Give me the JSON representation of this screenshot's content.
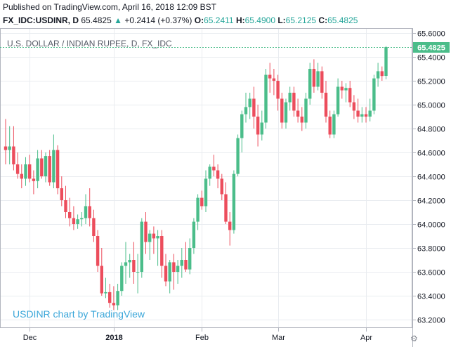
{
  "published": "Published on TradingView.com, April 16, 2018 12:09 BST",
  "header": {
    "symbol": "FX_IDC:USDINR, D",
    "last": "65.4825",
    "change_arrow": "▲",
    "change": "+0.2414 (+0.37%)",
    "open_label": "O:",
    "open": "65.2411",
    "high_label": "H:",
    "high": "65.4900",
    "low_label": "L:",
    "low": "65.2125",
    "close_label": "C:",
    "close": "65.4825"
  },
  "colors": {
    "up": "#4bbd8a",
    "down": "#ec4d5c",
    "grid": "#e9ecf0",
    "axis": "#b2b5be",
    "text": "#131722",
    "watermark": "#3aa6d9"
  },
  "chart_data": {
    "type": "candlestick",
    "title": "U.S. DOLLAR / INDIAN RUPEE, D, FX_IDC",
    "watermark": "USDINR chart by TradingView",
    "last_price_label": "65.4825",
    "last_price": 65.4825,
    "ylim": [
      63.15,
      65.65
    ],
    "yticks": [
      63.2,
      63.4,
      63.6,
      63.8,
      64.0,
      64.2,
      64.4,
      64.6,
      64.8,
      65.0,
      65.2,
      65.4,
      65.6
    ],
    "ytick_labels": [
      "63.2000",
      "63.4000",
      "63.6000",
      "63.8000",
      "64.0000",
      "64.2000",
      "64.4000",
      "64.6000",
      "64.8000",
      "65.0000",
      "65.2000",
      "65.4000",
      "65.6000"
    ],
    "xticks": [
      {
        "label": "Dec",
        "index": 6
      },
      {
        "label": "2018",
        "index": 27
      },
      {
        "label": "Feb",
        "index": 49
      },
      {
        "label": "Mar",
        "index": 68
      },
      {
        "label": "Apr",
        "index": 90
      }
    ],
    "candles": [
      {
        "o": 64.65,
        "h": 64.88,
        "l": 64.5,
        "c": 64.62
      },
      {
        "o": 64.62,
        "h": 64.82,
        "l": 64.5,
        "c": 64.65
      },
      {
        "o": 64.65,
        "h": 64.82,
        "l": 64.45,
        "c": 64.5
      },
      {
        "o": 64.5,
        "h": 64.6,
        "l": 64.38,
        "c": 64.42
      },
      {
        "o": 64.42,
        "h": 64.5,
        "l": 64.3,
        "c": 64.38
      },
      {
        "o": 64.38,
        "h": 64.56,
        "l": 64.32,
        "c": 64.5
      },
      {
        "o": 64.5,
        "h": 64.58,
        "l": 64.35,
        "c": 64.38
      },
      {
        "o": 64.38,
        "h": 64.45,
        "l": 64.25,
        "c": 64.36
      },
      {
        "o": 64.36,
        "h": 64.62,
        "l": 64.3,
        "c": 64.55
      },
      {
        "o": 64.55,
        "h": 64.62,
        "l": 64.38,
        "c": 64.4
      },
      {
        "o": 64.4,
        "h": 64.6,
        "l": 64.35,
        "c": 64.57
      },
      {
        "o": 64.57,
        "h": 64.62,
        "l": 64.32,
        "c": 64.35
      },
      {
        "o": 64.35,
        "h": 64.75,
        "l": 64.3,
        "c": 64.62
      },
      {
        "o": 64.62,
        "h": 64.66,
        "l": 64.25,
        "c": 64.3
      },
      {
        "o": 64.3,
        "h": 64.4,
        "l": 64.15,
        "c": 64.2
      },
      {
        "o": 64.2,
        "h": 64.32,
        "l": 64.05,
        "c": 64.1
      },
      {
        "o": 64.1,
        "h": 64.22,
        "l": 63.98,
        "c": 64.05
      },
      {
        "o": 64.05,
        "h": 64.15,
        "l": 63.95,
        "c": 64.0
      },
      {
        "o": 64.0,
        "h": 64.08,
        "l": 63.96,
        "c": 64.04
      },
      {
        "o": 64.04,
        "h": 64.1,
        "l": 63.98,
        "c": 64.05
      },
      {
        "o": 64.05,
        "h": 64.25,
        "l": 64.0,
        "c": 64.15
      },
      {
        "o": 64.15,
        "h": 64.3,
        "l": 63.98,
        "c": 64.05
      },
      {
        "o": 64.05,
        "h": 64.12,
        "l": 63.85,
        "c": 63.9
      },
      {
        "o": 63.9,
        "h": 63.95,
        "l": 63.6,
        "c": 63.65
      },
      {
        "o": 63.65,
        "h": 63.8,
        "l": 63.4,
        "c": 63.42
      },
      {
        "o": 63.42,
        "h": 63.55,
        "l": 63.38,
        "c": 63.43
      },
      {
        "o": 63.43,
        "h": 63.5,
        "l": 63.3,
        "c": 63.34
      },
      {
        "o": 63.34,
        "h": 63.48,
        "l": 63.28,
        "c": 63.32
      },
      {
        "o": 63.32,
        "h": 63.5,
        "l": 63.28,
        "c": 63.44
      },
      {
        "o": 63.44,
        "h": 63.68,
        "l": 63.4,
        "c": 63.65
      },
      {
        "o": 63.65,
        "h": 63.85,
        "l": 63.5,
        "c": 63.68
      },
      {
        "o": 63.68,
        "h": 63.75,
        "l": 63.55,
        "c": 63.7
      },
      {
        "o": 63.7,
        "h": 63.85,
        "l": 63.5,
        "c": 63.6
      },
      {
        "o": 63.6,
        "h": 63.75,
        "l": 63.42,
        "c": 63.6
      },
      {
        "o": 63.6,
        "h": 64.05,
        "l": 63.55,
        "c": 64.02
      },
      {
        "o": 64.02,
        "h": 64.1,
        "l": 63.75,
        "c": 63.85
      },
      {
        "o": 63.85,
        "h": 63.95,
        "l": 63.7,
        "c": 63.92
      },
      {
        "o": 63.92,
        "h": 63.98,
        "l": 63.75,
        "c": 63.88
      },
      {
        "o": 63.88,
        "h": 63.95,
        "l": 63.65,
        "c": 63.9
      },
      {
        "o": 63.9,
        "h": 63.95,
        "l": 63.55,
        "c": 63.65
      },
      {
        "o": 63.65,
        "h": 63.75,
        "l": 63.48,
        "c": 63.52
      },
      {
        "o": 63.52,
        "h": 63.7,
        "l": 63.42,
        "c": 63.68
      },
      {
        "o": 63.68,
        "h": 63.75,
        "l": 63.45,
        "c": 63.6
      },
      {
        "o": 63.6,
        "h": 63.7,
        "l": 63.5,
        "c": 63.65
      },
      {
        "o": 63.65,
        "h": 63.8,
        "l": 63.55,
        "c": 63.7
      },
      {
        "o": 63.7,
        "h": 63.85,
        "l": 63.6,
        "c": 63.62
      },
      {
        "o": 63.62,
        "h": 63.88,
        "l": 63.58,
        "c": 63.8
      },
      {
        "o": 63.8,
        "h": 64.05,
        "l": 63.75,
        "c": 64.02
      },
      {
        "o": 64.02,
        "h": 64.25,
        "l": 63.95,
        "c": 64.22
      },
      {
        "o": 64.22,
        "h": 64.28,
        "l": 64.12,
        "c": 64.15
      },
      {
        "o": 64.15,
        "h": 64.45,
        "l": 64.1,
        "c": 64.38
      },
      {
        "o": 64.38,
        "h": 64.5,
        "l": 64.32,
        "c": 64.48
      },
      {
        "o": 64.48,
        "h": 64.58,
        "l": 64.4,
        "c": 64.45
      },
      {
        "o": 64.45,
        "h": 64.5,
        "l": 64.3,
        "c": 64.38
      },
      {
        "o": 64.38,
        "h": 64.42,
        "l": 64.2,
        "c": 64.25
      },
      {
        "o": 64.25,
        "h": 64.35,
        "l": 64.0,
        "c": 64.02
      },
      {
        "o": 64.02,
        "h": 64.1,
        "l": 63.82,
        "c": 63.95
      },
      {
        "o": 63.95,
        "h": 64.45,
        "l": 63.92,
        "c": 64.42
      },
      {
        "o": 64.42,
        "h": 64.75,
        "l": 64.4,
        "c": 64.72
      },
      {
        "o": 64.72,
        "h": 64.95,
        "l": 64.6,
        "c": 64.92
      },
      {
        "o": 64.92,
        "h": 65.1,
        "l": 64.85,
        "c": 64.98
      },
      {
        "o": 64.98,
        "h": 65.1,
        "l": 64.88,
        "c": 65.05
      },
      {
        "o": 65.05,
        "h": 65.15,
        "l": 64.8,
        "c": 64.9
      },
      {
        "o": 64.9,
        "h": 65.0,
        "l": 64.65,
        "c": 64.75
      },
      {
        "o": 64.75,
        "h": 64.95,
        "l": 64.7,
        "c": 64.85
      },
      {
        "o": 64.85,
        "h": 65.3,
        "l": 64.8,
        "c": 65.25
      },
      {
        "o": 65.25,
        "h": 65.35,
        "l": 65.1,
        "c": 65.22
      },
      {
        "o": 65.22,
        "h": 65.3,
        "l": 65.08,
        "c": 65.2
      },
      {
        "o": 65.2,
        "h": 65.25,
        "l": 64.95,
        "c": 65.05
      },
      {
        "o": 65.05,
        "h": 65.1,
        "l": 64.8,
        "c": 64.85
      },
      {
        "o": 64.85,
        "h": 65.05,
        "l": 64.8,
        "c": 65.02
      },
      {
        "o": 65.02,
        "h": 65.15,
        "l": 64.95,
        "c": 65.1
      },
      {
        "o": 65.1,
        "h": 65.15,
        "l": 64.9,
        "c": 64.95
      },
      {
        "o": 64.95,
        "h": 65.05,
        "l": 64.85,
        "c": 64.9
      },
      {
        "o": 64.9,
        "h": 64.98,
        "l": 64.78,
        "c": 64.85
      },
      {
        "o": 64.85,
        "h": 65.1,
        "l": 64.8,
        "c": 65.05
      },
      {
        "o": 65.05,
        "h": 65.35,
        "l": 65.0,
        "c": 65.3
      },
      {
        "o": 65.3,
        "h": 65.38,
        "l": 65.1,
        "c": 65.15
      },
      {
        "o": 65.15,
        "h": 65.35,
        "l": 65.12,
        "c": 65.28
      },
      {
        "o": 65.28,
        "h": 65.32,
        "l": 65.05,
        "c": 65.1
      },
      {
        "o": 65.1,
        "h": 65.2,
        "l": 64.85,
        "c": 64.9
      },
      {
        "o": 64.9,
        "h": 64.95,
        "l": 64.72,
        "c": 64.75
      },
      {
        "o": 64.75,
        "h": 64.95,
        "l": 64.72,
        "c": 64.92
      },
      {
        "o": 64.92,
        "h": 65.22,
        "l": 64.9,
        "c": 65.15
      },
      {
        "o": 65.15,
        "h": 65.2,
        "l": 65.05,
        "c": 65.12
      },
      {
        "o": 65.12,
        "h": 65.18,
        "l": 65.02,
        "c": 65.14
      },
      {
        "o": 65.14,
        "h": 65.2,
        "l": 64.98,
        "c": 65.02
      },
      {
        "o": 65.02,
        "h": 65.08,
        "l": 64.88,
        "c": 64.95
      },
      {
        "o": 64.95,
        "h": 65.05,
        "l": 64.85,
        "c": 64.9
      },
      {
        "o": 64.9,
        "h": 64.98,
        "l": 64.85,
        "c": 64.92
      },
      {
        "o": 64.92,
        "h": 64.98,
        "l": 64.85,
        "c": 64.9
      },
      {
        "o": 64.9,
        "h": 65.05,
        "l": 64.86,
        "c": 64.95
      },
      {
        "o": 64.95,
        "h": 65.25,
        "l": 64.92,
        "c": 65.22
      },
      {
        "o": 65.22,
        "h": 65.35,
        "l": 65.15,
        "c": 65.28
      },
      {
        "o": 65.28,
        "h": 65.32,
        "l": 65.2,
        "c": 65.24
      },
      {
        "o": 65.2411,
        "h": 65.49,
        "l": 65.2125,
        "c": 65.4825
      }
    ]
  }
}
